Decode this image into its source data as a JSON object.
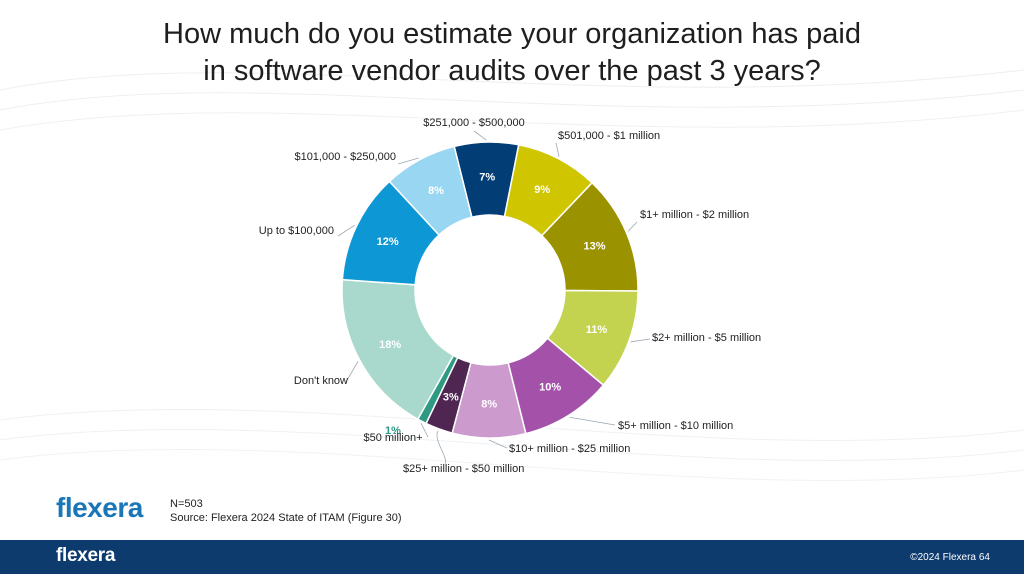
{
  "title_line1": "How much do you estimate your organization has paid",
  "title_line2": "in software vendor audits over the past 3 years?",
  "chart_data": {
    "type": "donut",
    "title": "How much do you estimate your organization has paid in software vendor audits over the past 3 years?",
    "unit": "%",
    "categories": [
      "$251,000 - $500,000",
      "$501,000 - $1 million",
      "$1+ million - $2 million",
      "$2+ million - $5 million",
      "$5+ million - $10 million",
      "$10+ million - $25 million",
      "$25+ million - $50 million",
      "$50 million+",
      "Don't know",
      "Up to $100,000",
      "$101,000 - $250,000"
    ],
    "values": [
      7,
      9,
      13,
      11,
      10,
      8,
      3,
      1,
      18,
      12,
      8
    ],
    "value_labels": [
      "7%",
      "9%",
      "13%",
      "11%",
      "10%",
      "8%",
      "3%",
      "1%",
      "18%",
      "12%",
      "8%"
    ],
    "colors": [
      "#033d75",
      "#cfc500",
      "#9b9200",
      "#c3d34f",
      "#a451aa",
      "#cc9acd",
      "#4f2552",
      "#2e9a83",
      "#a9d8cc",
      "#0e97d5",
      "#99d6f1"
    ],
    "pct_text_colors": [
      "#ffffff",
      "#ffffff",
      "#ffffff",
      "#ffffff",
      "#ffffff",
      "#ffffff",
      "#ffffff",
      "#2e9a83",
      "#ffffff",
      "#ffffff",
      "#ffffff"
    ]
  },
  "sample_size": "N=503",
  "source": "Source: Flexera 2024 State of ITAM (Figure 30)",
  "logo": "flexera",
  "footer_logo": "flexera",
  "copyright": "©2024 Flexera",
  "page_number": "64"
}
